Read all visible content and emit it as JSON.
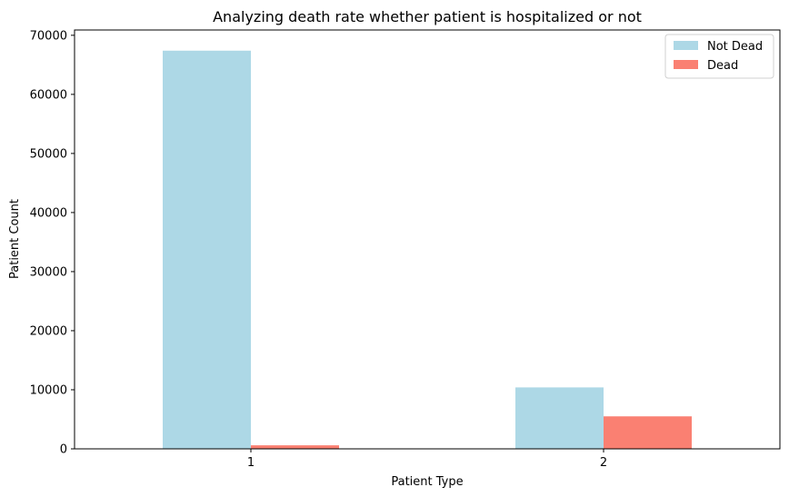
{
  "chart_data": {
    "type": "bar",
    "title": "Analyzing death rate whether patient is hospitalized or not",
    "xlabel": "Patient Type",
    "ylabel": "Patient Count",
    "categories": [
      "1",
      "2"
    ],
    "ylim": [
      0,
      70900
    ],
    "yticks": [
      0,
      10000,
      20000,
      30000,
      40000,
      50000,
      60000,
      70000
    ],
    "series": [
      {
        "name": "Not Dead",
        "color": "#add8e6",
        "values": [
          67400,
          10400
        ]
      },
      {
        "name": "Dead",
        "color": "#fa8072",
        "values": [
          600,
          5500
        ]
      }
    ],
    "legend": "top-right",
    "grid": false
  }
}
